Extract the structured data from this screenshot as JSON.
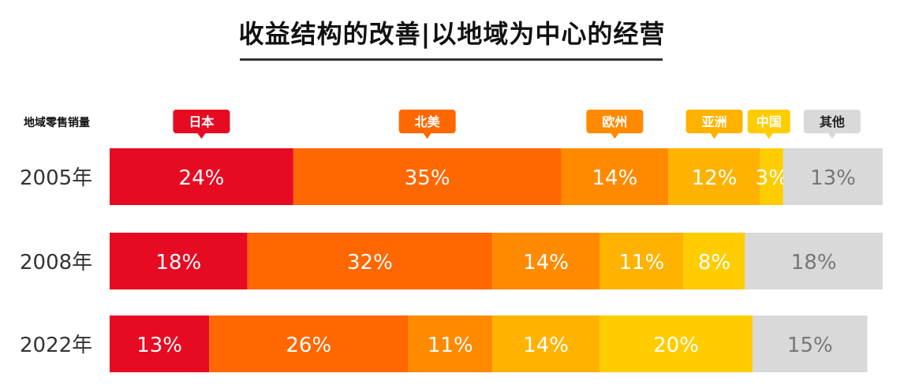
{
  "title": "收益结构的改善|以地域为中心的经营",
  "colors": {
    "japan": "#E60B22",
    "north_america": "#FF6700",
    "europe": "#FF8A00",
    "asia": "#FFB300",
    "china": "#FFCC00",
    "other": "#D9D9D9"
  },
  "chart_data": {
    "type": "bar",
    "stacked": true,
    "orientation": "horizontal",
    "ylabel": "地域零售销量",
    "categories": [
      "2005年",
      "2008年",
      "2022年"
    ],
    "series": [
      {
        "name": "日本",
        "color": "#E60B22",
        "label_color": "#ffffff",
        "values": [
          24,
          18,
          13
        ]
      },
      {
        "name": "北美",
        "color": "#FF6700",
        "label_color": "#ffffff",
        "values": [
          35,
          32,
          26
        ]
      },
      {
        "name": "欧州",
        "color": "#FF8A00",
        "label_color": "#ffffff",
        "values": [
          14,
          14,
          11
        ]
      },
      {
        "name": "亚洲",
        "color": "#FFB300",
        "label_color": "#ffffff",
        "values": [
          12,
          11,
          14
        ]
      },
      {
        "name": "中国",
        "color": "#FFCC00",
        "label_color": "#ffffff",
        "values": [
          3,
          8,
          20
        ]
      },
      {
        "name": "其他",
        "color": "#D9D9D9",
        "label_color": "#777777",
        "values": [
          13,
          18,
          15
        ]
      }
    ],
    "value_suffix": "%",
    "legend_placement": "top",
    "xlim": [
      0,
      101
    ]
  }
}
